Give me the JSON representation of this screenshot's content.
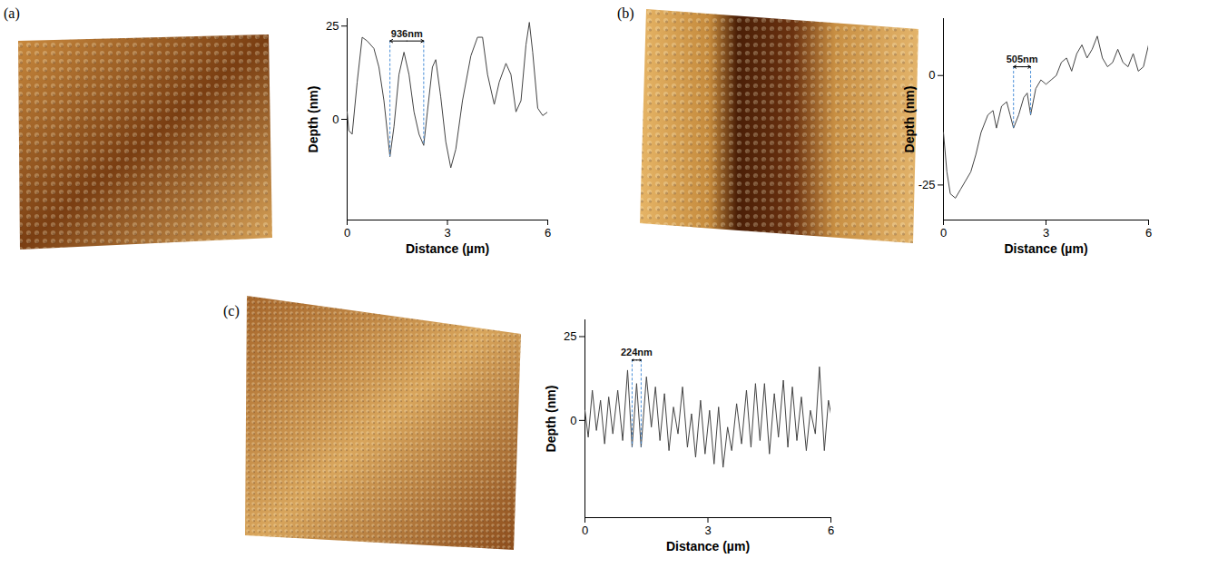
{
  "chart_data": [
    {
      "type": "line",
      "label": "(a)",
      "xlabel": "Distance (µm)",
      "ylabel": "Depth (nm)",
      "color": "#444444",
      "xlim": [
        0,
        6
      ],
      "xticks": [
        0,
        3,
        6
      ],
      "ylim": [
        -27,
        27
      ],
      "yticks": [
        0,
        25
      ],
      "x": [
        0,
        0.05,
        0.15,
        0.3,
        0.45,
        0.6,
        0.8,
        0.95,
        1.1,
        1.28,
        1.4,
        1.55,
        1.7,
        1.85,
        2.0,
        2.15,
        2.29,
        2.4,
        2.55,
        2.65,
        2.8,
        2.95,
        3.1,
        3.25,
        3.45,
        3.7,
        3.9,
        4.05,
        4.2,
        4.4,
        4.55,
        4.75,
        4.9,
        5.05,
        5.2,
        5.35,
        5.45,
        5.55,
        5.7,
        5.85,
        6.0
      ],
      "values": [
        2,
        -3,
        -4,
        10,
        22,
        21,
        19,
        14,
        5,
        -10,
        -2,
        12,
        18,
        12,
        2,
        -4,
        -7,
        2,
        14,
        16,
        6,
        -6,
        -13,
        -8,
        5,
        17,
        22,
        22,
        12,
        4,
        10,
        15,
        12,
        2,
        5,
        20,
        26,
        18,
        3,
        1,
        2
      ],
      "annotations": [
        {
          "text": "936nm",
          "x": [
            1.28,
            2.29
          ],
          "y": 21
        }
      ]
    },
    {
      "type": "line",
      "label": "(b)",
      "xlabel": "Distance (µm)",
      "ylabel": "Depth (nm)",
      "color": "#444444",
      "xlim": [
        0,
        6
      ],
      "xticks": [
        0,
        3,
        6
      ],
      "ylim": [
        -33,
        13
      ],
      "yticks": [
        -25,
        0
      ],
      "x": [
        0,
        0.1,
        0.2,
        0.35,
        0.5,
        0.65,
        0.8,
        0.95,
        1.1,
        1.3,
        1.45,
        1.55,
        1.7,
        1.85,
        1.95,
        2.05,
        2.2,
        2.35,
        2.45,
        2.55,
        2.7,
        2.85,
        3.0,
        3.15,
        3.3,
        3.45,
        3.6,
        3.75,
        3.9,
        4.05,
        4.2,
        4.35,
        4.5,
        4.65,
        4.8,
        4.95,
        5.1,
        5.25,
        5.4,
        5.55,
        5.7,
        5.85,
        6.0
      ],
      "values": [
        -13,
        -22,
        -27,
        -28,
        -26,
        -24,
        -22,
        -18,
        -13,
        -9,
        -8,
        -12,
        -7,
        -6,
        -9,
        -12,
        -9,
        -5,
        -4,
        -9,
        -3,
        -1,
        -2,
        -1,
        0,
        3,
        4,
        1,
        5,
        7,
        4,
        6,
        9,
        4,
        2,
        3,
        6,
        3,
        2,
        5,
        1,
        2,
        7
      ],
      "annotations": [
        {
          "text": "505nm",
          "x": [
            2.05,
            2.55
          ],
          "y": 2
        }
      ]
    },
    {
      "type": "line",
      "label": "(c)",
      "xlabel": "Distance (µm)",
      "ylabel": "Depth (nm)",
      "color": "#444444",
      "xlim": [
        0,
        6
      ],
      "xticks": [
        0,
        3,
        6
      ],
      "ylim": [
        -29,
        30
      ],
      "yticks": [
        0,
        25
      ],
      "x": [
        0,
        0.08,
        0.18,
        0.28,
        0.38,
        0.48,
        0.58,
        0.68,
        0.8,
        0.92,
        1.04,
        1.15,
        1.26,
        1.37,
        1.5,
        1.62,
        1.72,
        1.83,
        1.94,
        2.05,
        2.16,
        2.27,
        2.38,
        2.5,
        2.6,
        2.7,
        2.82,
        2.93,
        3.04,
        3.15,
        3.26,
        3.37,
        3.48,
        3.58,
        3.7,
        3.82,
        3.94,
        4.05,
        4.16,
        4.27,
        4.38,
        4.5,
        4.62,
        4.72,
        4.84,
        4.95,
        5.06,
        5.17,
        5.28,
        5.4,
        5.5,
        5.62,
        5.72,
        5.84,
        5.94,
        6.0
      ],
      "values": [
        3,
        -5,
        9,
        -3,
        6,
        -7,
        7,
        -4,
        9,
        -6,
        15,
        -8,
        11,
        -8,
        13,
        -2,
        10,
        -6,
        8,
        -9,
        4,
        -4,
        10,
        -8,
        2,
        -11,
        6,
        -10,
        3,
        -13,
        4,
        -14,
        -2,
        -9,
        5,
        -7,
        9,
        -8,
        11,
        -6,
        11,
        -10,
        8,
        -5,
        12,
        -8,
        10,
        -6,
        7,
        -9,
        3,
        -4,
        16,
        -9,
        6,
        2
      ],
      "annotations": [
        {
          "text": "224nm",
          "x": [
            1.15,
            1.37
          ],
          "y": 18
        }
      ]
    }
  ]
}
